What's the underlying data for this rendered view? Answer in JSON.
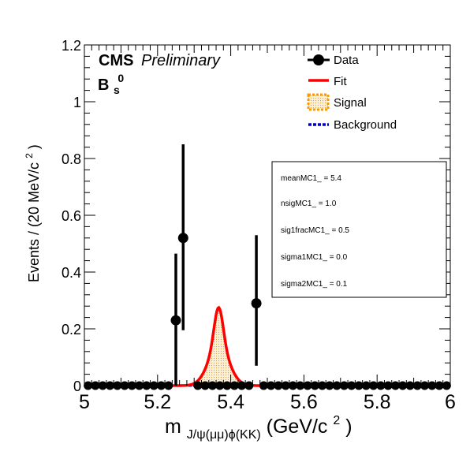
{
  "chart_data": {
    "type": "scatter",
    "xlim": [
      5.0,
      6.0
    ],
    "ylim": [
      0,
      1.2
    ],
    "x_ticks": [
      "5",
      "5.2",
      "5.4",
      "5.6",
      "5.8",
      "6"
    ],
    "y_ticks": [
      "0",
      "0.2",
      "0.4",
      "0.6",
      "0.8",
      "1",
      "1.2"
    ],
    "y_tick_values": [
      0,
      0.2,
      0.4,
      0.6,
      0.8,
      1.0,
      1.2
    ],
    "x_tick_values": [
      5.0,
      5.2,
      5.4,
      5.6,
      5.8,
      6.0
    ],
    "xlabel": {
      "main": "m",
      "subscript": "J/ψ(μμ)ϕ(KK)",
      "unit_prefix": " (GeV/c",
      "unit_sup": "2",
      "unit_suffix": ")"
    },
    "ylabel": {
      "text": "Events / (20 MeV/c",
      "sup": "2",
      "suffix": ")"
    },
    "cms_label": "CMS",
    "preliminary_label": "Preliminary",
    "particle_label": {
      "main": "B",
      "sub": "s",
      "sup": "0"
    },
    "legend_entries": [
      {
        "key": "data",
        "label": "Data"
      },
      {
        "key": "fit",
        "label": "Fit"
      },
      {
        "key": "signal",
        "label": "Signal"
      },
      {
        "key": "background",
        "label": "Background"
      }
    ],
    "params_box": [
      "meanMC1_ =  5.4",
      "nsigMC1_ =  1.0",
      "sig1fracMC1_ =  0.5",
      "sigma1MC1_ =  0.0",
      "sigma2MC1_ =  0.1"
    ],
    "data_series": {
      "name": "Data",
      "bin_width": 0.02,
      "zero_bin_centers": [
        5.01,
        5.03,
        5.05,
        5.07,
        5.09,
        5.11,
        5.13,
        5.15,
        5.17,
        5.19,
        5.21,
        5.23,
        5.31,
        5.33,
        5.35,
        5.37,
        5.39,
        5.41,
        5.43,
        5.45,
        5.49,
        5.51,
        5.53,
        5.55,
        5.57,
        5.59,
        5.61,
        5.63,
        5.65,
        5.67,
        5.69,
        5.71,
        5.73,
        5.75,
        5.77,
        5.79,
        5.81,
        5.83,
        5.85,
        5.87,
        5.89,
        5.91,
        5.93,
        5.95,
        5.97,
        5.99
      ],
      "nonzero_points": [
        {
          "x": 5.25,
          "y": 0.23,
          "y_low": 0.0,
          "y_high": 0.465
        },
        {
          "x": 5.27,
          "y": 0.52,
          "y_low": 0.195,
          "y_high": 0.85
        },
        {
          "x": 5.47,
          "y": 0.29,
          "y_low": 0.07,
          "y_high": 0.53
        }
      ]
    },
    "fit_curve": {
      "name": "Fit",
      "model": "double_gaussian",
      "mean": 5.367,
      "peak": 0.275,
      "sigma1": 0.012,
      "sigma2": 0.028,
      "frac1": 0.5
    },
    "colors": {
      "data": "#000000",
      "fit": "#ff0000",
      "signal_fill": "#f5deb3",
      "signal_line": "#ff9900",
      "background": "#0000cc",
      "frame": "#000000"
    }
  }
}
